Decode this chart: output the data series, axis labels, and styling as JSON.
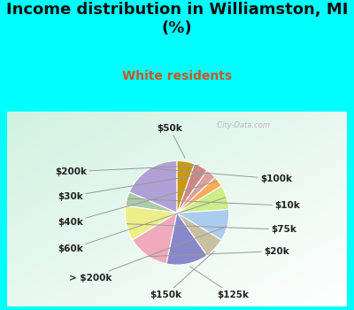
{
  "title": "Income distribution in Williamston, MI\n(%)",
  "subtitle": "White residents",
  "title_color": "#111111",
  "subtitle_color": "#cc5522",
  "bg_cyan": "#00ffff",
  "labels": [
    "$100k",
    "$10k",
    "$75k",
    "$20k",
    "$125k",
    "$150k",
    "> $200k",
    "$60k",
    "$40k",
    "$30k",
    "$200k",
    "$50k"
  ],
  "values": [
    17,
    4,
    10,
    12,
    12,
    6,
    9,
    7,
    3,
    3,
    4,
    5
  ],
  "colors": [
    "#b0a0d8",
    "#aaccaa",
    "#eeee88",
    "#f0aabb",
    "#8888cc",
    "#c8c0a0",
    "#aaccee",
    "#ccee88",
    "#ffaa55",
    "#dda0a0",
    "#cc8888",
    "#c89910"
  ],
  "start_angle": 90,
  "label_fontsize": 7.5,
  "title_fontsize": 13,
  "subtitle_fontsize": 10,
  "watermark": "  City-Data.com"
}
